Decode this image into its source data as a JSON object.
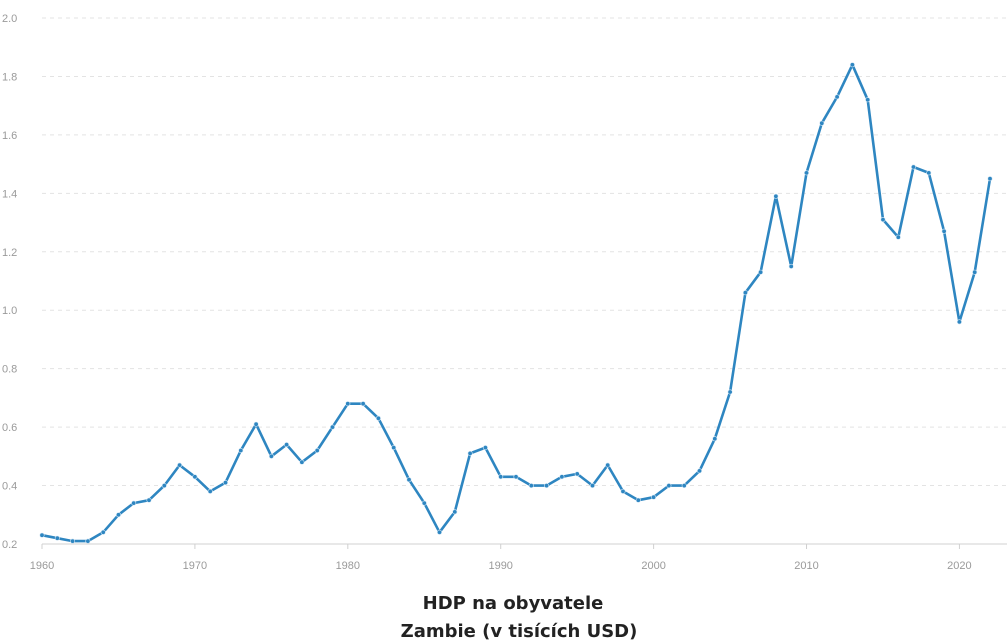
{
  "chart_data": {
    "type": "line",
    "title": "HDP na obyvatele",
    "subtitle": "Zambie (v tisících USD)",
    "xlabel": "",
    "ylabel": "",
    "xlim": [
      1960,
      2022
    ],
    "ylim": [
      0.2,
      2.0
    ],
    "x_ticks": [
      1960,
      1970,
      1980,
      1990,
      2000,
      2010,
      2020
    ],
    "y_ticks": [
      0.2,
      0.4,
      0.6,
      0.8,
      1.0,
      1.2,
      1.4,
      1.6,
      1.8,
      2.0
    ],
    "grid": "horizontal-dashed",
    "legend": "none",
    "line_color": "#2e86c1",
    "series": [
      {
        "x": [
          1960,
          1961,
          1962,
          1963,
          1964,
          1965,
          1966,
          1967,
          1968,
          1969,
          1970,
          1971,
          1972,
          1973,
          1974,
          1975,
          1976,
          1977,
          1978,
          1979,
          1980,
          1981,
          1982,
          1983,
          1984,
          1985,
          1986,
          1987,
          1988,
          1989,
          1990,
          1991,
          1992,
          1993,
          1994,
          1995,
          1996,
          1997,
          1998,
          1999,
          2000,
          2001,
          2002,
          2003,
          2004,
          2005,
          2006,
          2007,
          2008,
          2009,
          2010,
          2011,
          2012,
          2013,
          2014,
          2015,
          2016,
          2017,
          2018,
          2019,
          2020,
          2021,
          2022
        ],
        "values": [
          0.23,
          0.22,
          0.21,
          0.21,
          0.24,
          0.3,
          0.34,
          0.35,
          0.4,
          0.47,
          0.43,
          0.38,
          0.41,
          0.52,
          0.61,
          0.5,
          0.54,
          0.48,
          0.52,
          0.6,
          0.68,
          0.68,
          0.63,
          0.53,
          0.42,
          0.34,
          0.24,
          0.31,
          0.51,
          0.53,
          0.43,
          0.43,
          0.4,
          0.4,
          0.43,
          0.44,
          0.4,
          0.47,
          0.38,
          0.35,
          0.36,
          0.4,
          0.4,
          0.45,
          0.56,
          0.72,
          1.06,
          1.13,
          1.39,
          1.15,
          1.47,
          1.64,
          1.73,
          1.84,
          1.72,
          1.31,
          1.25,
          1.49,
          1.47,
          1.27,
          0.96,
          1.13,
          1.45
        ]
      }
    ]
  }
}
